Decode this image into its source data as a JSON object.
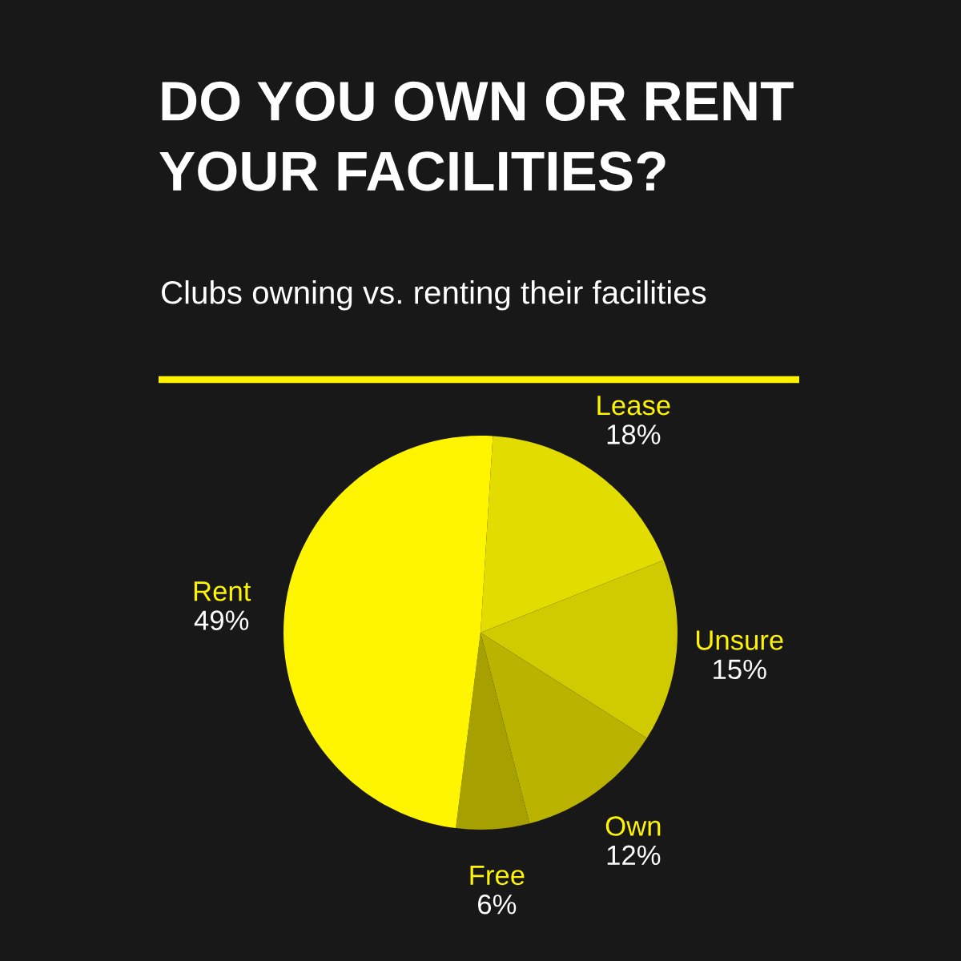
{
  "chart_data": {
    "type": "pie",
    "title": "DO YOU OWN OR RENT YOUR FACILITIES?",
    "subtitle": "Clubs owning vs. renting their facilities",
    "categories": [
      "Lease",
      "Unsure",
      "Own",
      "Free",
      "Rent"
    ],
    "values": [
      18,
      15,
      12,
      6,
      49
    ],
    "colors": [
      "#e2dc00",
      "#d0ca00",
      "#bab400",
      "#a6a100",
      "#fff500"
    ],
    "value_labels": [
      "18%",
      "15%",
      "12%",
      "6%",
      "49%"
    ]
  }
}
